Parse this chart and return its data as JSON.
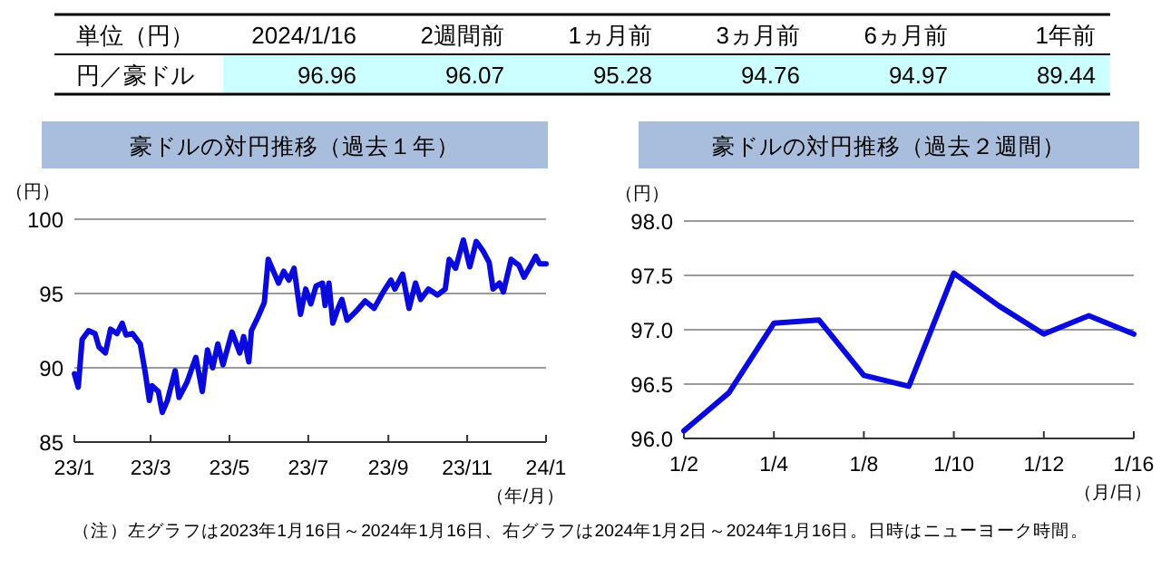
{
  "chart_data": [
    {
      "type": "other",
      "legend_title": "単位（円）",
      "categories": [
        "2024/1/16",
        "2週間前",
        "1ヵ月前",
        "3ヵ月前",
        "6ヵ月前",
        "1年前"
      ],
      "data_labels": true,
      "series": [
        {
          "name": "円／豪ドル",
          "color": "#ccffff",
          "values": [
            96.96,
            96.07,
            95.28,
            94.76,
            94.97,
            89.44
          ]
        }
      ]
    },
    {
      "type": "line",
      "title": "豪ドルの対円推移（過去１年）",
      "ylabel": "（円）",
      "xlabel": "（年/月）",
      "grid": "y",
      "xlim": [
        "2023-01-16",
        "2024-01-16"
      ],
      "xticks": [
        {
          "value": "2023-01-16",
          "label": "23/1"
        },
        {
          "value": "2023-03-16",
          "label": "23/3"
        },
        {
          "value": "2023-05-16",
          "label": "23/5"
        },
        {
          "value": "2023-07-16",
          "label": "23/7"
        },
        {
          "value": "2023-09-16",
          "label": "23/9"
        },
        {
          "value": "2023-11-16",
          "label": "23/11"
        },
        {
          "value": "2024-01-16",
          "label": "24/1"
        }
      ],
      "ylim": [
        85,
        100
      ],
      "yticks": [
        85,
        90,
        95,
        100
      ],
      "series": [
        {
          "color": "#0a0adc",
          "x": [
            "2023-01-16",
            "2023-01-19",
            "2023-01-22",
            "2023-01-27",
            "2023-02-01",
            "2023-02-04",
            "2023-02-09",
            "2023-02-13",
            "2023-02-18",
            "2023-02-22",
            "2023-02-25",
            "2023-03-02",
            "2023-03-08",
            "2023-03-12",
            "2023-03-15",
            "2023-03-17",
            "2023-03-22",
            "2023-03-25",
            "2023-03-29",
            "2023-04-04",
            "2023-04-07",
            "2023-04-13",
            "2023-04-20",
            "2023-04-25",
            "2023-04-29",
            "2023-05-03",
            "2023-05-07",
            "2023-05-11",
            "2023-05-18",
            "2023-05-24",
            "2023-05-27",
            "2023-05-31",
            "2023-06-02",
            "2023-06-07",
            "2023-06-12",
            "2023-06-15",
            "2023-06-20",
            "2023-06-23",
            "2023-06-27",
            "2023-07-01",
            "2023-07-05",
            "2023-07-10",
            "2023-07-14",
            "2023-07-18",
            "2023-07-22",
            "2023-07-27",
            "2023-07-29",
            "2023-08-01",
            "2023-08-04",
            "2023-08-08",
            "2023-08-11",
            "2023-08-15",
            "2023-08-22",
            "2023-08-29",
            "2023-09-05",
            "2023-09-12",
            "2023-09-18",
            "2023-09-21",
            "2023-09-27",
            "2023-10-02",
            "2023-10-07",
            "2023-10-11",
            "2023-10-17",
            "2023-10-24",
            "2023-10-30",
            "2023-11-02",
            "2023-11-07",
            "2023-11-13",
            "2023-11-18",
            "2023-11-23",
            "2023-11-28",
            "2023-12-03",
            "2023-12-06",
            "2023-12-11",
            "2023-12-14",
            "2023-12-20",
            "2023-12-26",
            "2023-12-30",
            "2024-01-03",
            "2024-01-08",
            "2024-01-11",
            "2024-01-16"
          ],
          "values": [
            89.6,
            88.7,
            91.9,
            92.5,
            92.3,
            91.4,
            91.0,
            92.6,
            92.3,
            93.0,
            92.2,
            92.3,
            91.6,
            89.6,
            87.8,
            88.8,
            88.4,
            87.0,
            87.8,
            89.8,
            88.0,
            89.0,
            90.7,
            88.4,
            91.2,
            90.0,
            91.6,
            90.2,
            92.4,
            91.0,
            92.1,
            90.4,
            92.5,
            93.4,
            94.4,
            97.3,
            96.3,
            95.7,
            96.5,
            95.9,
            96.7,
            93.6,
            95.3,
            94.3,
            95.5,
            95.7,
            94.2,
            95.7,
            93.0,
            94.0,
            94.6,
            93.2,
            93.8,
            94.5,
            94.0,
            95.1,
            95.9,
            95.3,
            96.3,
            94.0,
            95.7,
            94.6,
            95.3,
            94.9,
            95.3,
            97.3,
            96.7,
            98.6,
            96.8,
            98.5,
            97.9,
            97.1,
            95.3,
            95.7,
            95.1,
            97.3,
            96.9,
            96.1,
            96.7,
            97.5,
            97.0,
            97.0
          ]
        }
      ]
    },
    {
      "type": "line",
      "title": "豪ドルの対円推移（過去２週間）",
      "ylabel": "（円）",
      "xlabel": "（月/日）",
      "grid": "y",
      "categories": [
        "1/2",
        null,
        "1/4",
        null,
        "1/8",
        null,
        "1/10",
        null,
        "1/12",
        null,
        "1/16"
      ],
      "ylim": [
        96,
        98
      ],
      "yticks": [
        {
          "value": 96,
          "label": "96.0"
        },
        {
          "value": 96.5,
          "label": "96.5"
        },
        {
          "value": 97,
          "label": "97.0"
        },
        {
          "value": 97.5,
          "label": "97.5"
        },
        {
          "value": 98,
          "label": "98.0"
        }
      ],
      "series": [
        {
          "color": "#0a0adc",
          "values": [
            96.07,
            96.42,
            97.06,
            97.09,
            96.58,
            96.48,
            97.52,
            97.22,
            96.96,
            97.13,
            96.96
          ]
        }
      ],
      "annotations": [
        "（注）左グラフは2023年1月16日～2024年1月16日、右グラフは2024年1月2日～2024年1月16日。日時はニューヨーク時間。"
      ]
    }
  ]
}
